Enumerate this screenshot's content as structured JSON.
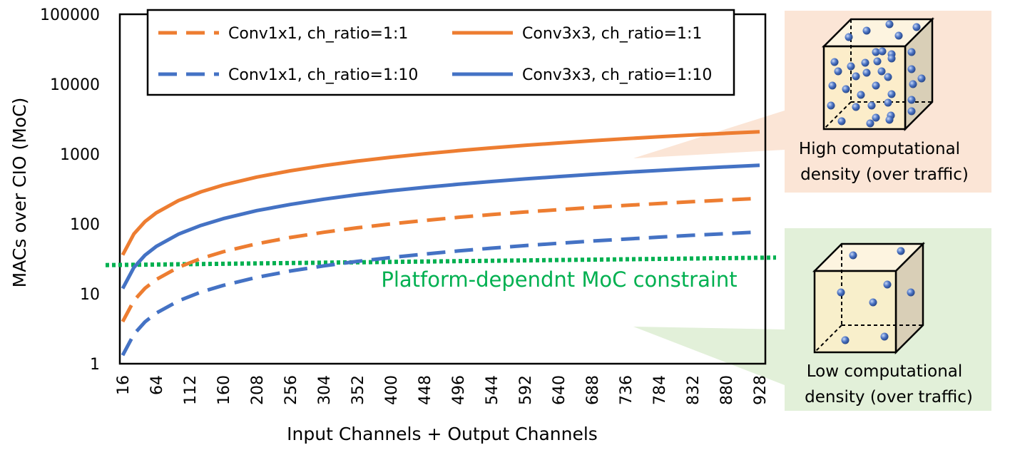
{
  "chart_data": {
    "type": "line",
    "xlabel": "Input Channels + Output Channels",
    "ylabel": "MACs over CIO (MoC)",
    "yscale": "log",
    "ylim": [
      1,
      100000
    ],
    "yticks": [
      "1",
      "10",
      "100",
      "1000",
      "10000",
      "100000"
    ],
    "xticks": [
      "16",
      "64",
      "112",
      "160",
      "208",
      "256",
      "304",
      "352",
      "400",
      "448",
      "496",
      "544",
      "592",
      "640",
      "688",
      "736",
      "784",
      "832",
      "880",
      "928"
    ],
    "x": [
      16,
      32,
      48,
      64,
      96,
      128,
      160,
      208,
      256,
      304,
      352,
      400,
      448,
      496,
      544,
      592,
      640,
      688,
      736,
      784,
      832,
      880,
      928
    ],
    "series": [
      {
        "name": "Conv1x1, ch_ratio=1:1",
        "color": "#ED7D31",
        "dash": true,
        "values": [
          4,
          8,
          12,
          16,
          24,
          32,
          40,
          52,
          64,
          76,
          88,
          100,
          112,
          124,
          136,
          148,
          160,
          172,
          184,
          196,
          208,
          220,
          232
        ]
      },
      {
        "name": "Conv3x3, ch_ratio=1:1",
        "color": "#ED7D31",
        "dash": false,
        "values": [
          36,
          72,
          108,
          144,
          216,
          288,
          360,
          468,
          576,
          684,
          792,
          900,
          1008,
          1116,
          1224,
          1332,
          1440,
          1548,
          1656,
          1764,
          1872,
          1980,
          2088
        ]
      },
      {
        "name": "Conv1x1, ch_ratio=1:10",
        "color": "#4472C4",
        "dash": true,
        "values": [
          1.32,
          2.64,
          3.97,
          5.29,
          7.93,
          10.6,
          13.2,
          17.2,
          21.2,
          25.1,
          29.1,
          33.1,
          37.0,
          41.0,
          45.0,
          48.9,
          52.9,
          56.9,
          60.8,
          64.8,
          68.8,
          72.7,
          76.7
        ]
      },
      {
        "name": "Conv3x3, ch_ratio=1:10",
        "color": "#4472C4",
        "dash": false,
        "values": [
          11.9,
          23.8,
          35.7,
          47.6,
          71.4,
          95.2,
          119,
          155,
          190,
          226,
          262,
          298,
          333,
          369,
          405,
          440,
          476,
          512,
          548,
          583,
          619,
          655,
          690
        ]
      }
    ],
    "constraint": {
      "label": "Platform-dependnt MoC constraint",
      "color": "#00B050",
      "y_start": 27,
      "y_end": 33
    },
    "legend_position": "top"
  },
  "callouts": {
    "high": {
      "line1": "High computational",
      "line2": "density (over traffic)",
      "bg": "#FBE5D6"
    },
    "low": {
      "line1": "Low computational",
      "line2": "density (over traffic)",
      "bg": "#E2F0D9"
    }
  }
}
